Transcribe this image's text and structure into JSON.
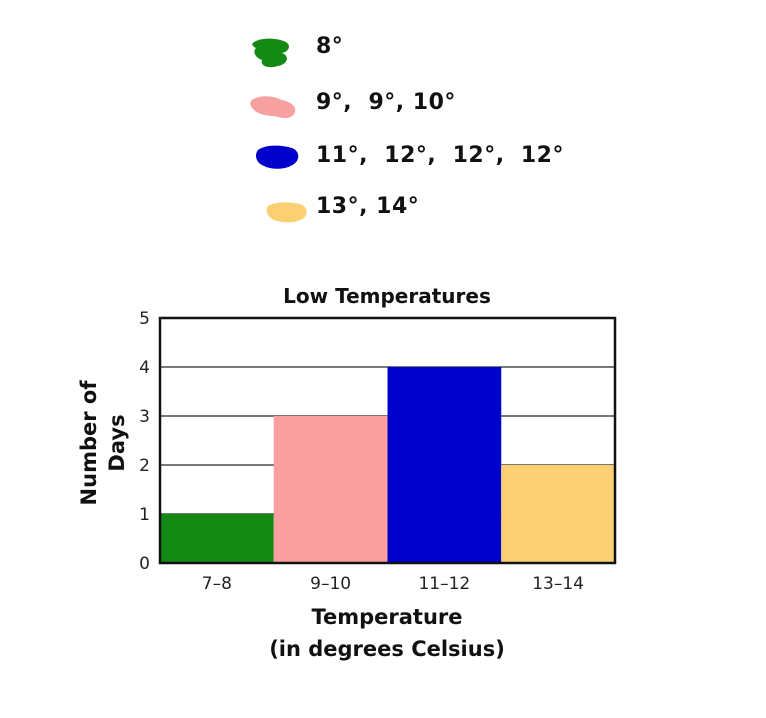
{
  "legend": [
    {
      "text": "8°",
      "color": "#148a14"
    },
    {
      "text": "9°,  9°, 10°",
      "color": "#f7a0a0"
    },
    {
      "text": "11°,  12°,  12°,  12°",
      "color": "#0000cc"
    },
    {
      "text": "13°, 14°",
      "color": "#fbd073"
    }
  ],
  "chart_data": {
    "type": "bar",
    "title": "Low Temperatures",
    "categories": [
      "7–8",
      "9–10",
      "11–12",
      "13–14"
    ],
    "values": [
      1,
      3,
      4,
      2
    ],
    "colors": [
      "#148a14",
      "#fa9e9e",
      "#0000cc",
      "#fbd073"
    ],
    "ylabel_line1": "Number of",
    "ylabel_line2": "Days",
    "xlabel_line1": "Temperature",
    "xlabel_line2": "(in degrees Celsius)",
    "ylim": [
      0,
      5
    ],
    "yticks": [
      "0",
      "1",
      "2",
      "3",
      "4",
      "5"
    ],
    "grid": true
  }
}
